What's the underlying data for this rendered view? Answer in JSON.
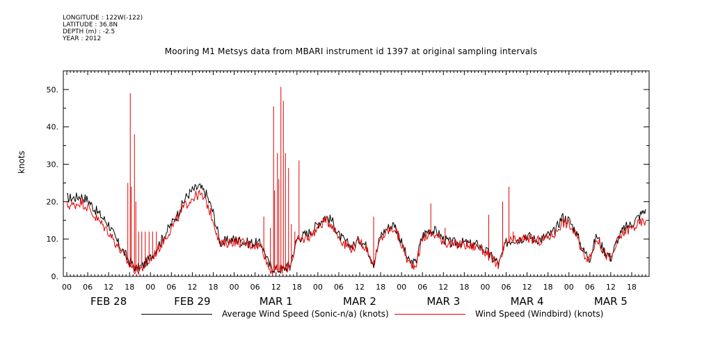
{
  "meta": {
    "longitude": "LONGITUDE : 122W(-122)",
    "latitude": "LATITUDE : 36.8N",
    "depth": "DEPTH (m) : -2.5",
    "year": "YEAR : 2012"
  },
  "chart_data": {
    "type": "line",
    "title": "Mooring M1 Metsys data from MBARI instrument id 1397 at original sampling intervals",
    "ylabel": "knots",
    "xlabel": "",
    "ylim": [
      0,
      55
    ],
    "xlim_hours": [
      -1,
      167
    ],
    "yticks": [
      "0.",
      "10.",
      "20.",
      "30.",
      "40.",
      "50."
    ],
    "xtick_hours": [
      "00",
      "06",
      "12",
      "18"
    ],
    "day_labels": [
      "FEB 28",
      "FEB 29",
      "MAR  1",
      "MAR  2",
      "MAR  3",
      "MAR  4",
      "MAR  5"
    ],
    "grid": false,
    "legend_position": "bottom",
    "series": [
      {
        "name": "Average Wind Speed (Sonic-n/a) (knots)",
        "color": "#000000",
        "x": [
          0,
          2,
          4,
          6,
          8,
          10,
          12,
          14,
          16,
          18,
          20,
          22,
          24,
          26,
          28,
          30,
          32,
          34,
          36,
          38,
          40,
          42,
          44,
          46,
          48,
          50,
          52,
          54,
          56,
          58,
          60,
          62,
          64,
          66,
          68,
          70,
          72,
          74,
          76,
          78,
          80,
          82,
          84,
          86,
          88,
          90,
          92,
          94,
          96,
          98,
          100,
          102,
          104,
          106,
          108,
          110,
          112,
          114,
          116,
          118,
          120,
          122,
          124,
          126,
          128,
          130,
          132,
          134,
          136,
          138,
          140,
          142,
          144,
          146,
          148,
          150,
          152,
          154,
          156,
          158,
          160,
          162,
          164,
          166
        ],
        "values": [
          21,
          21,
          21.5,
          20.5,
          18,
          16,
          14,
          10,
          7,
          4,
          2,
          3,
          5,
          8,
          11,
          14,
          17,
          21,
          23,
          24,
          22,
          17,
          9,
          9.5,
          10,
          9.5,
          9,
          9,
          8.5,
          3,
          2,
          2,
          3,
          10,
          11,
          12,
          14,
          16,
          15,
          11,
          9,
          8,
          10,
          8,
          3.5,
          11,
          13,
          14,
          9,
          4,
          3.5,
          11,
          12.5,
          12,
          10,
          9,
          9,
          9,
          8.5,
          8.5,
          7,
          5,
          3.5,
          9,
          10,
          10,
          11,
          10,
          10,
          11,
          12,
          16,
          15,
          12,
          7,
          5,
          11,
          7,
          5,
          10,
          13,
          14,
          16,
          18
        ]
      },
      {
        "name": "Wind Speed (Windbird) (knots)",
        "color": "#e00000",
        "x": [
          0,
          2,
          4,
          6,
          8,
          10,
          12,
          14,
          16,
          18,
          20,
          22,
          24,
          26,
          28,
          30,
          32,
          34,
          36,
          38,
          40,
          42,
          44,
          46,
          48,
          50,
          52,
          54,
          56,
          58,
          60,
          62,
          64,
          66,
          68,
          70,
          72,
          74,
          76,
          78,
          80,
          82,
          84,
          86,
          88,
          90,
          92,
          94,
          96,
          98,
          100,
          102,
          104,
          106,
          108,
          110,
          112,
          114,
          116,
          118,
          120,
          122,
          124,
          126,
          128,
          130,
          132,
          134,
          136,
          138,
          140,
          142,
          144,
          146,
          148,
          150,
          152,
          154,
          156,
          158,
          160,
          162,
          164,
          166
        ],
        "values": [
          19,
          19,
          20,
          18.5,
          16,
          14,
          12,
          9,
          6,
          3,
          1.5,
          2.5,
          4.5,
          7,
          10,
          13,
          16,
          19,
          21,
          22,
          20,
          15,
          8.5,
          9,
          9.5,
          9,
          8.5,
          8.5,
          8,
          2,
          1.5,
          2,
          2.5,
          9.5,
          10,
          11,
          13,
          15,
          14,
          10.5,
          8.5,
          7.5,
          9.5,
          7.5,
          3,
          10,
          12,
          13,
          8.5,
          3.5,
          3,
          10,
          11.5,
          11,
          9.5,
          8.5,
          8.5,
          8.5,
          8,
          8,
          6.5,
          4.5,
          3,
          9,
          9.5,
          9.5,
          10.5,
          9.5,
          9.5,
          10.5,
          11.5,
          14.5,
          14,
          11,
          6.5,
          4.5,
          10.5,
          6.5,
          4.5,
          9.5,
          12,
          13,
          14,
          15
        ],
        "spikes": [
          [
            17.5,
            25
          ],
          [
            18.2,
            49
          ],
          [
            18.5,
            24
          ],
          [
            19.4,
            38
          ],
          [
            19.8,
            20
          ],
          [
            20.6,
            12
          ],
          [
            21.5,
            12
          ],
          [
            22.5,
            12
          ],
          [
            23.6,
            12
          ],
          [
            24.6,
            12
          ],
          [
            25.7,
            12
          ],
          [
            56.5,
            16
          ],
          [
            58.4,
            13
          ],
          [
            59.3,
            45.5
          ],
          [
            59.6,
            23
          ],
          [
            60.4,
            33
          ],
          [
            60.8,
            26
          ],
          [
            61.4,
            50.7
          ],
          [
            62.1,
            47
          ],
          [
            62.7,
            33
          ],
          [
            63.6,
            29
          ],
          [
            64.4,
            14
          ],
          [
            65.4,
            12
          ],
          [
            66.6,
            31
          ],
          [
            88,
            16
          ],
          [
            95,
            12
          ],
          [
            104.4,
            19.5
          ],
          [
            108.5,
            13
          ],
          [
            121,
            16.5
          ],
          [
            125,
            20
          ],
          [
            126.8,
            24
          ],
          [
            128,
            12
          ]
        ]
      }
    ]
  }
}
